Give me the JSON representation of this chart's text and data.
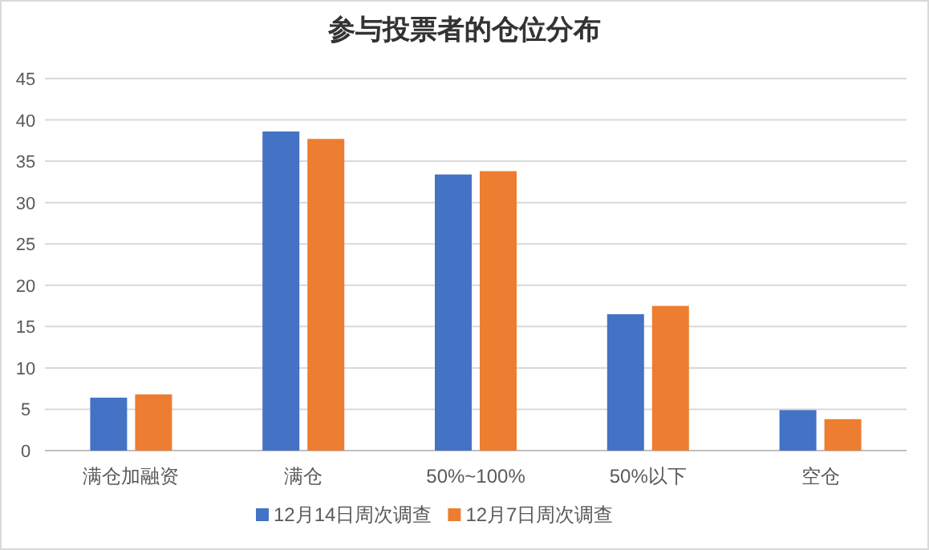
{
  "chart_data": {
    "type": "bar",
    "title": "参与投票者的仓位分布",
    "categories": [
      "满仓加融资",
      "满仓",
      "50%~100%",
      "50%以下",
      "空仓"
    ],
    "series": [
      {
        "name": "12月14日周次调查",
        "color": "#4472c4",
        "values": [
          6.4,
          38.6,
          33.4,
          16.5,
          4.9
        ]
      },
      {
        "name": "12月7日周次调查",
        "color": "#ed7d31",
        "values": [
          6.8,
          37.7,
          33.8,
          17.5,
          3.8
        ]
      }
    ],
    "ylim": [
      0,
      45
    ],
    "yticks": [
      0,
      5,
      10,
      15,
      20,
      25,
      30,
      35,
      40,
      45
    ],
    "grid": "y",
    "legend": "bottom"
  }
}
